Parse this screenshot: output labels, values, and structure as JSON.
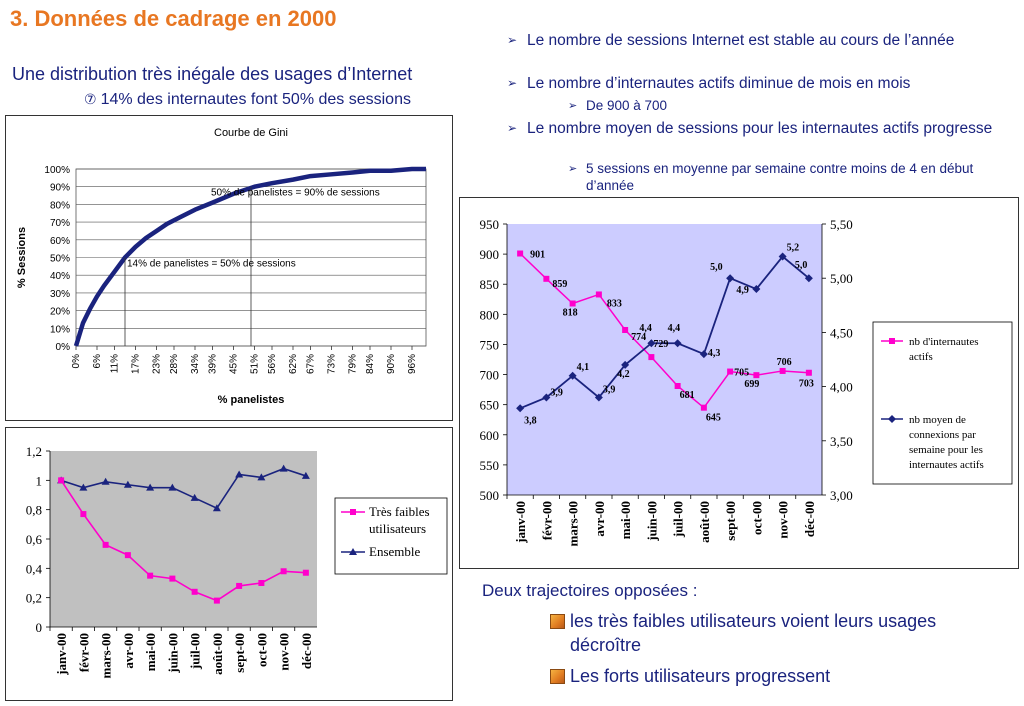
{
  "slide": {
    "title": "3. Données de cadrage en 2000",
    "subtitle": "Une distribution très inégale des usages d’Internet",
    "subnote_symbol": "⑦",
    "subnote": "14% des internautes font 50% des sessions"
  },
  "bullets": [
    {
      "text": "Le nombre de sessions Internet est stable au cours de l’année",
      "subs": []
    },
    {
      "text": "Le nombre d’internautes actifs diminue de mois en mois",
      "subs": [
        "De 900 à 700"
      ]
    },
    {
      "text": "Le nombre moyen de sessions pour les internautes actifs progresse",
      "subs": [
        "5 sessions en moyenne par semaine contre moins de 4 en début d’année"
      ]
    }
  ],
  "trajectories": {
    "title": "Deux trajectoires opposées  :",
    "items": [
      "les très faibles utilisateurs voient leurs usages décroître",
      "Les forts utilisateurs progressent"
    ]
  },
  "chart_data": [
    {
      "type": "line",
      "title": "Courbe de Gini",
      "xlabel": "% panelistes",
      "ylabel": "% Sessions",
      "x_tick_labels": [
        "0%",
        "6%",
        "11%",
        "17%",
        "23%",
        "28%",
        "34%",
        "39%",
        "45%",
        "51%",
        "56%",
        "62%",
        "67%",
        "73%",
        "79%",
        "84%",
        "90%",
        "96%"
      ],
      "y_tick_labels": [
        "0%",
        "10%",
        "20%",
        "30%",
        "40%",
        "50%",
        "60%",
        "70%",
        "80%",
        "90%",
        "100%"
      ],
      "xlim": [
        0,
        100
      ],
      "ylim": [
        0,
        100
      ],
      "series": [
        {
          "x": [
            0,
            2,
            4,
            6,
            8,
            11,
            14,
            17,
            20,
            23,
            26,
            30,
            34,
            39,
            45,
            51,
            56,
            62,
            67,
            73,
            79,
            84,
            90,
            96,
            100
          ],
          "y": [
            0,
            13,
            21,
            28,
            34,
            42,
            50,
            56,
            61,
            65,
            69,
            73,
            77,
            81,
            86,
            90,
            92,
            94,
            96,
            97,
            98,
            99,
            99,
            100,
            100
          ]
        }
      ],
      "annotations": [
        {
          "text": "50% de panelistes = 90% de sessions",
          "x": 50,
          "y": 90
        },
        {
          "text": "14% de panelistes = 50% de sessions",
          "x": 14,
          "y": 50
        }
      ],
      "color": "#1a237e"
    },
    {
      "type": "line",
      "categories": [
        "janv-00",
        "févr-00",
        "mars-00",
        "avr-00",
        "mai-00",
        "juin-00",
        "juil-00",
        "août-00",
        "sept-00",
        "oct-00",
        "nov-00",
        "déc-00"
      ],
      "ylim_left": [
        500,
        950
      ],
      "ylim_right": [
        3.0,
        5.5
      ],
      "y_tick_labels_left": [
        "500",
        "550",
        "600",
        "650",
        "700",
        "750",
        "800",
        "850",
        "900",
        "950"
      ],
      "y_tick_labels_right": [
        "3,00",
        "3,50",
        "4,00",
        "4,50",
        "5,00",
        "5,50"
      ],
      "legend_position": "right",
      "series": [
        {
          "name": "nb d'internautes actifs",
          "axis": "left",
          "color": "#ff00cc",
          "values": [
            901,
            859,
            818,
            833,
            774,
            729,
            681,
            645,
            705,
            699,
            706,
            703
          ],
          "labels": [
            "901",
            "859",
            "818",
            "833",
            "774",
            "729",
            "681",
            "645",
            "705",
            "699",
            "706",
            "703"
          ]
        },
        {
          "name": "nb moyen de connexions par semaine pour les internautes actifs",
          "axis": "right",
          "color": "#1a237e",
          "values": [
            3.8,
            3.9,
            4.1,
            3.9,
            4.2,
            4.4,
            4.4,
            4.3,
            5.0,
            4.9,
            5.2,
            5.0
          ],
          "labels": [
            "3,8",
            "3,9",
            "4,1",
            "3,9",
            "4,2",
            "4,4",
            "4,4",
            "4,3",
            "5,0",
            "4,9",
            "5,2",
            "5,0"
          ]
        }
      ]
    },
    {
      "type": "line",
      "categories": [
        "janv-00",
        "févr-00",
        "mars-00",
        "avr-00",
        "mai-00",
        "juin-00",
        "juil-00",
        "août-00",
        "sept-00",
        "oct-00",
        "nov-00",
        "déc-00"
      ],
      "ylim": [
        0,
        1.2
      ],
      "y_tick_labels": [
        "0",
        "0,2",
        "0,4",
        "0,6",
        "0,8",
        "1",
        "1,2"
      ],
      "legend_position": "right",
      "series": [
        {
          "name": "Très faibles utilisateurs",
          "color": "#ff00cc",
          "values": [
            1.0,
            0.77,
            0.56,
            0.49,
            0.35,
            0.33,
            0.24,
            0.18,
            0.28,
            0.3,
            0.38,
            0.37
          ]
        },
        {
          "name": "Ensemble",
          "color": "#1a237e",
          "values": [
            1.0,
            0.95,
            0.99,
            0.97,
            0.95,
            0.95,
            0.88,
            0.81,
            1.04,
            1.02,
            1.08,
            1.03
          ]
        }
      ]
    }
  ]
}
